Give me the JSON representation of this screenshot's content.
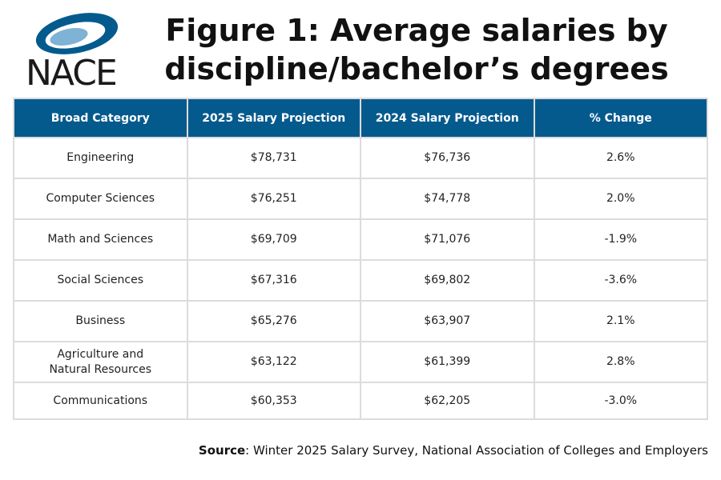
{
  "logo": {
    "text": "NACE",
    "colors": {
      "swoosh": "#045a8d",
      "swoosh_light": "#7fb3d5",
      "text": "#1a1a1a"
    }
  },
  "title": {
    "line1": "Figure 1: Average salaries by",
    "line2": "discipline/bachelor’s degrees"
  },
  "colors": {
    "header_bg": "#045a8d",
    "header_text": "#ffffff",
    "grid": "#dcdcdc"
  },
  "chart_data": {
    "type": "table",
    "columns": [
      "Broad Category",
      "2025 Salary Projection",
      "2024 Salary Projection",
      "% Change"
    ],
    "rows": [
      [
        "Engineering",
        "$78,731",
        "$76,736",
        "2.6%"
      ],
      [
        "Computer Sciences",
        "$76,251",
        "$74,778",
        "2.0%"
      ],
      [
        "Math and Sciences",
        "$69,709",
        "$71,076",
        "-1.9%"
      ],
      [
        "Social Sciences",
        "$67,316",
        "$69,802",
        "-3.6%"
      ],
      [
        "Business",
        "$65,276",
        "$63,907",
        "2.1%"
      ],
      [
        "Agriculture and Natural Resources",
        "$63,122",
        "$61,399",
        "2.8%"
      ],
      [
        "Communications",
        "$60,353",
        "$62,205",
        "-3.0%"
      ]
    ]
  },
  "source": {
    "label": "Source",
    "text": ": Winter 2025 Salary Survey, National Association of Colleges and Employers"
  }
}
